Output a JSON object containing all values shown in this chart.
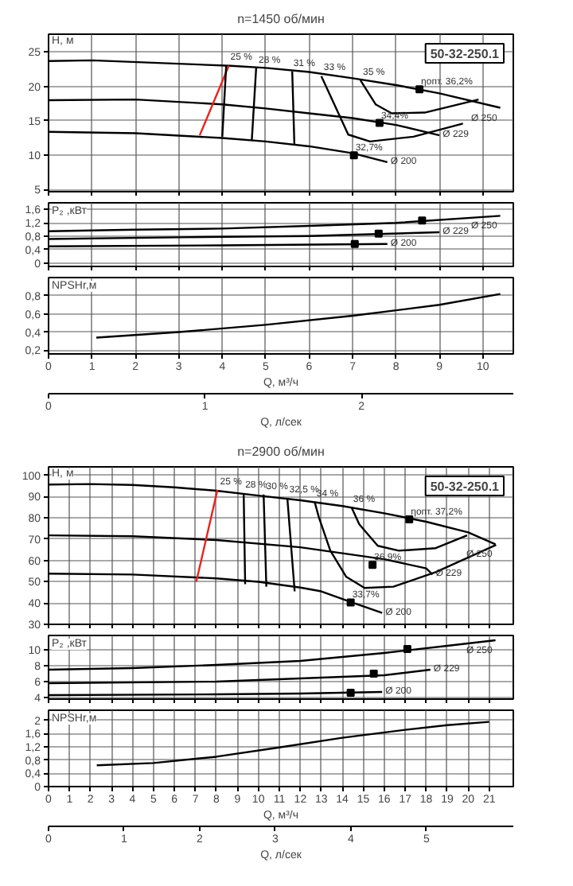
{
  "chart_data": [
    {
      "type": "line",
      "title": "n=1450 об/мин",
      "ylabel": "H, м",
      "xlim": [
        0,
        10.7
      ],
      "xticks": [
        0,
        1,
        2,
        3,
        4,
        5,
        6,
        7,
        8,
        9,
        10
      ],
      "ylim": [
        4.7,
        27.6
      ],
      "yticks": [
        5,
        10,
        15,
        20,
        25
      ],
      "grid": true,
      "tick_labels": "y",
      "series": [
        {
          "name": "Ø 250",
          "color": "#000000",
          "x": [
            0,
            1,
            4.2,
            5,
            6,
            7,
            8,
            9,
            10.4
          ],
          "values": [
            23.7,
            23.8,
            23.0,
            22.7,
            22.1,
            21.2,
            20.2,
            19.0,
            16.9
          ]
        },
        {
          "name": "Ø 229",
          "color": "#000000",
          "x": [
            0,
            2,
            4,
            5,
            6,
            7,
            8,
            9
          ],
          "values": [
            18.0,
            18.1,
            17.4,
            16.8,
            16.1,
            15.4,
            14.4,
            12.9
          ]
        },
        {
          "name": "Ø 200",
          "color": "#000000",
          "x": [
            0,
            2,
            4,
            5,
            6,
            7,
            7.8
          ],
          "values": [
            13.4,
            13.2,
            12.5,
            12.0,
            11.3,
            10.3,
            9.0
          ]
        },
        {
          "color": "#e8231f",
          "x": [
            3.48,
            4.15
          ],
          "values": [
            12.9,
            23.0
          ]
        },
        {
          "color": "#000000",
          "x": [
            4.0,
            4.09
          ],
          "values": [
            12.7,
            23.0
          ]
        },
        {
          "color": "#000000",
          "x": [
            4.68,
            4.78
          ],
          "values": [
            12.2,
            22.7
          ]
        },
        {
          "color": "#000000",
          "x": [
            5.66,
            5.61
          ],
          "values": [
            11.5,
            22.2
          ]
        },
        {
          "color": "#000000",
          "x": [
            6.28,
            6.9,
            7.4,
            8.4,
            9.54
          ],
          "values": [
            21.5,
            13.0,
            12.0,
            12.7,
            14.6
          ]
        },
        {
          "color": "#000000",
          "x": [
            7.18,
            7.53,
            7.9,
            8.66,
            9.9
          ],
          "values": [
            20.9,
            17.4,
            16.1,
            16.2,
            18.1
          ]
        },
        {
          "type": "scatter",
          "marker": "square",
          "color": "#000000",
          "x": [
            8.54,
            7.62,
            7.03
          ],
          "values": [
            19.6,
            14.7,
            10.0
          ]
        }
      ],
      "annotations": [
        "50-32-250.1",
        {
          "text": "25 %",
          "x": 4.15,
          "y": 23.2
        },
        {
          "text": "28 %",
          "x": 4.8,
          "y": 22.8
        },
        {
          "text": "31 %",
          "x": 5.6,
          "y": 22.3
        },
        {
          "text": "33 %",
          "x": 6.3,
          "y": 21.7
        },
        {
          "text": "35 %",
          "x": 7.2,
          "y": 21.0
        },
        {
          "text": "ηопт. 36,2%",
          "x": 8.54,
          "y": 19.6
        },
        {
          "text": "34,4%",
          "x": 7.62,
          "y": 14.7
        },
        {
          "text": "32,7%",
          "x": 7.03,
          "y": 10.0
        }
      ]
    },
    {
      "type": "line",
      "ylabel": "P₂ ,кВт",
      "xlim": [
        0,
        10.7
      ],
      "xticks": [
        0,
        1,
        2,
        3,
        4,
        5,
        6,
        7,
        8,
        9,
        10
      ],
      "ylim": [
        -0.1,
        1.8
      ],
      "yticks": [
        0,
        {
          "value": 0.4,
          "label": "0,4"
        },
        {
          "value": 0.8,
          "label": "0,8"
        },
        {
          "value": 1.2,
          "label": "1,2"
        },
        {
          "value": 1.6,
          "label": "1,6"
        }
      ],
      "grid": true,
      "tick_labels": "y",
      "series": [
        {
          "name": "Ø 250",
          "color": "#000000",
          "x": [
            0,
            2,
            4,
            6,
            8,
            10.4
          ],
          "values": [
            0.95,
            1.0,
            1.03,
            1.11,
            1.2,
            1.41
          ]
        },
        {
          "name": "Ø 229",
          "color": "#000000",
          "x": [
            0,
            3,
            6,
            9
          ],
          "values": [
            0.72,
            0.77,
            0.81,
            0.92
          ]
        },
        {
          "name": "Ø 200",
          "color": "#000000",
          "x": [
            0,
            4,
            7.8
          ],
          "values": [
            0.5,
            0.53,
            0.57
          ]
        },
        {
          "type": "scatter",
          "marker": "square",
          "color": "#000000",
          "x": [
            8.6,
            7.6,
            7.05
          ],
          "values": [
            1.27,
            0.88,
            0.57
          ]
        }
      ]
    },
    {
      "type": "line",
      "ylabel": "NPSHr,м",
      "xlabel": "Q, м³/ч",
      "x2label": "Q, л/сек",
      "xlim": [
        0,
        10.7
      ],
      "xticks": [
        0,
        1,
        2,
        3,
        4,
        5,
        6,
        7,
        8,
        9,
        10
      ],
      "x2lim": [
        0,
        2.97
      ],
      "x2ticks": [
        0,
        1,
        2
      ],
      "ylim": [
        0.16,
        1.0
      ],
      "yticks": [
        {
          "value": 0.2,
          "label": "0,2"
        },
        {
          "value": 0.4,
          "label": "0,4"
        },
        {
          "value": 0.6,
          "label": "0,6"
        },
        {
          "value": 0.8,
          "label": "0,8"
        }
      ],
      "grid": true,
      "series": [
        {
          "color": "#000000",
          "x": [
            1.1,
            3,
            5,
            7,
            9,
            10.4
          ],
          "values": [
            0.34,
            0.4,
            0.48,
            0.58,
            0.7,
            0.82
          ]
        }
      ]
    },
    {
      "type": "line",
      "title": "n=2900 об/мин",
      "ylabel": "H, м",
      "xlim": [
        0,
        22.15
      ],
      "xticks": [
        0,
        1,
        2,
        3,
        4,
        5,
        6,
        7,
        8,
        9,
        10,
        11,
        12,
        13,
        14,
        15,
        16,
        17,
        18,
        19,
        20,
        21
      ],
      "ylim": [
        30,
        104
      ],
      "yticks": [
        30,
        40,
        50,
        60,
        70,
        80,
        90,
        100
      ],
      "grid": true,
      "tick_labels": "y",
      "series": [
        {
          "name": "Ø 250",
          "color": "#000000",
          "x": [
            0,
            2,
            4,
            6,
            8,
            10,
            12,
            14,
            16,
            18,
            20,
            21.3
          ],
          "values": [
            95.7,
            95.9,
            95.5,
            94.4,
            92.8,
            90.5,
            88.3,
            85.6,
            82.2,
            78.2,
            73.2,
            67.6
          ]
        },
        {
          "name": "Ø 229",
          "color": "#000000",
          "x": [
            0,
            4,
            8,
            12,
            16,
            18,
            18.3
          ],
          "values": [
            71.8,
            71.4,
            69.6,
            66.2,
            60.6,
            56.3,
            53.4
          ]
        },
        {
          "name": "Ø 200",
          "color": "#000000",
          "x": [
            0,
            4,
            8,
            10,
            12,
            13,
            14.4,
            15.9
          ],
          "values": [
            53.8,
            53.4,
            51.6,
            50.0,
            47.3,
            45.5,
            40.5,
            35.4
          ]
        },
        {
          "color": "#e8231f",
          "x": [
            7.04,
            8.05
          ],
          "values": [
            50.0,
            93.2
          ]
        },
        {
          "color": "#000000",
          "x": [
            9.3,
            9.37
          ],
          "values": [
            91.7,
            48.9
          ]
        },
        {
          "color": "#000000",
          "x": [
            10.25,
            10.38
          ],
          "values": [
            91.0,
            47.7
          ]
        },
        {
          "color": "#000000",
          "x": [
            11.38,
            11.73
          ],
          "values": [
            89.4,
            45.5
          ]
        },
        {
          "color": "#000000",
          "x": [
            12.68,
            12.88,
            13.43,
            14.19,
            15.06,
            16.44,
            18.45,
            21.33
          ],
          "values": [
            87.6,
            80.4,
            64.6,
            52.3,
            47.1,
            47.7,
            54.5,
            67.3
          ]
        },
        {
          "color": "#000000",
          "x": [
            14.44,
            14.81,
            15.69,
            16.69,
            18.45,
            19.95
          ],
          "values": [
            84.9,
            77.0,
            66.9,
            64.6,
            65.8,
            71.8
          ]
        },
        {
          "type": "scatter",
          "marker": "square",
          "color": "#000000",
          "x": [
            17.19,
            15.44,
            14.4
          ],
          "values": [
            79.3,
            57.9,
            40.3
          ]
        }
      ],
      "annotations": [
        "50-32-250.1",
        {
          "text": "25 %",
          "x": 8.1,
          "y": 93.5
        },
        {
          "text": "28 %",
          "x": 9.3,
          "y": 92.2
        },
        {
          "text": "30 %",
          "x": 10.3,
          "y": 91.3
        },
        {
          "text": "32,5 %",
          "x": 11.4,
          "y": 89.8
        },
        {
          "text": "34 %",
          "x": 12.7,
          "y": 88.0
        },
        {
          "text": "36 %",
          "x": 14.44,
          "y": 85.3
        },
        {
          "text": "ηопт. 37,2%",
          "x": 17.19,
          "y": 79.3
        },
        {
          "text": "36,9%",
          "x": 15.44,
          "y": 57.9
        },
        {
          "text": "33,7%",
          "x": 14.4,
          "y": 40.3
        }
      ]
    },
    {
      "type": "line",
      "ylabel": "P₂ ,кВт",
      "xlim": [
        0,
        22.15
      ],
      "xticks": [
        0,
        1,
        2,
        3,
        4,
        5,
        6,
        7,
        8,
        9,
        10,
        11,
        12,
        13,
        14,
        15,
        16,
        17,
        18,
        19,
        20,
        21
      ],
      "ylim": [
        3.8,
        11.8
      ],
      "yticks": [
        4,
        6,
        8,
        10
      ],
      "grid": true,
      "tick_labels": "y",
      "series": [
        {
          "name": "Ø 250",
          "color": "#000000",
          "x": [
            0,
            4,
            8,
            12,
            16,
            19,
            21.3
          ],
          "values": [
            7.5,
            7.7,
            8.1,
            8.6,
            9.6,
            10.5,
            11.2
          ]
        },
        {
          "name": "Ø 229",
          "color": "#000000",
          "x": [
            0,
            8,
            12,
            16,
            18.2
          ],
          "values": [
            5.8,
            6.0,
            6.4,
            6.8,
            7.5
          ]
        },
        {
          "name": "Ø 200",
          "color": "#000000",
          "x": [
            0,
            8,
            12,
            15.9
          ],
          "values": [
            4.3,
            4.4,
            4.5,
            4.7
          ]
        },
        {
          "type": "scatter",
          "marker": "square",
          "color": "#000000",
          "x": [
            17.1,
            15.5,
            14.4
          ],
          "values": [
            10.1,
            7.0,
            4.6
          ]
        }
      ]
    },
    {
      "type": "line",
      "ylabel": "NPSHr,м",
      "xlabel": "Q, м³/ч",
      "x2label": "Q, л/сек",
      "xlim": [
        0,
        22.15
      ],
      "xticks": [
        0,
        1,
        2,
        3,
        4,
        5,
        6,
        7,
        8,
        9,
        10,
        11,
        12,
        13,
        14,
        15,
        16,
        17,
        18,
        19,
        20,
        21
      ],
      "x2lim": [
        0,
        6.15
      ],
      "x2ticks": [
        0,
        1,
        2,
        3,
        4,
        5
      ],
      "ylim": [
        0,
        2.3
      ],
      "yticks": [
        0,
        {
          "value": 0.4,
          "label": "0,4"
        },
        {
          "value": 0.8,
          "label": "0,8"
        },
        {
          "value": 1.2,
          "label": "1,2"
        },
        {
          "value": 1.6,
          "label": "1,6"
        },
        2
      ],
      "grid": true,
      "series": [
        {
          "color": "#000000",
          "x": [
            2.3,
            5,
            8,
            11,
            14,
            17,
            19,
            21
          ],
          "values": [
            0.64,
            0.71,
            0.9,
            1.18,
            1.47,
            1.71,
            1.85,
            1.95
          ]
        }
      ]
    }
  ]
}
